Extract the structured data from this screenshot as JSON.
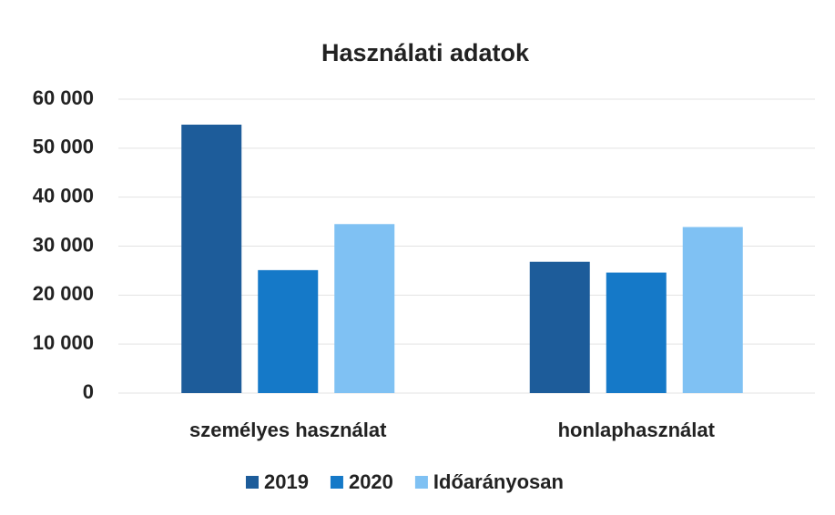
{
  "chart_data": {
    "type": "bar",
    "title": "Használati adatok",
    "categories": [
      "személyes használat",
      "honlaphasználat"
    ],
    "series": [
      {
        "name": "2019",
        "color": "#1d5c9a",
        "values": [
          54800,
          26800
        ]
      },
      {
        "name": "2020",
        "color": "#1579c8",
        "values": [
          25100,
          24600
        ]
      },
      {
        "name": "Időarányosan",
        "color": "#7fc1f3",
        "values": [
          34500,
          33900
        ]
      }
    ],
    "ylim": [
      0,
      60000
    ],
    "yticks": [
      0,
      {
        "value": 10000,
        "label": "10 000"
      },
      {
        "value": 20000,
        "label": "20 000"
      },
      {
        "value": 30000,
        "label": "30 000"
      },
      {
        "value": 40000,
        "label": "40 000"
      },
      {
        "value": 50000,
        "label": "50 000"
      },
      {
        "value": 60000,
        "label": "60 000"
      }
    ],
    "grid": true,
    "legend": "bottom"
  }
}
